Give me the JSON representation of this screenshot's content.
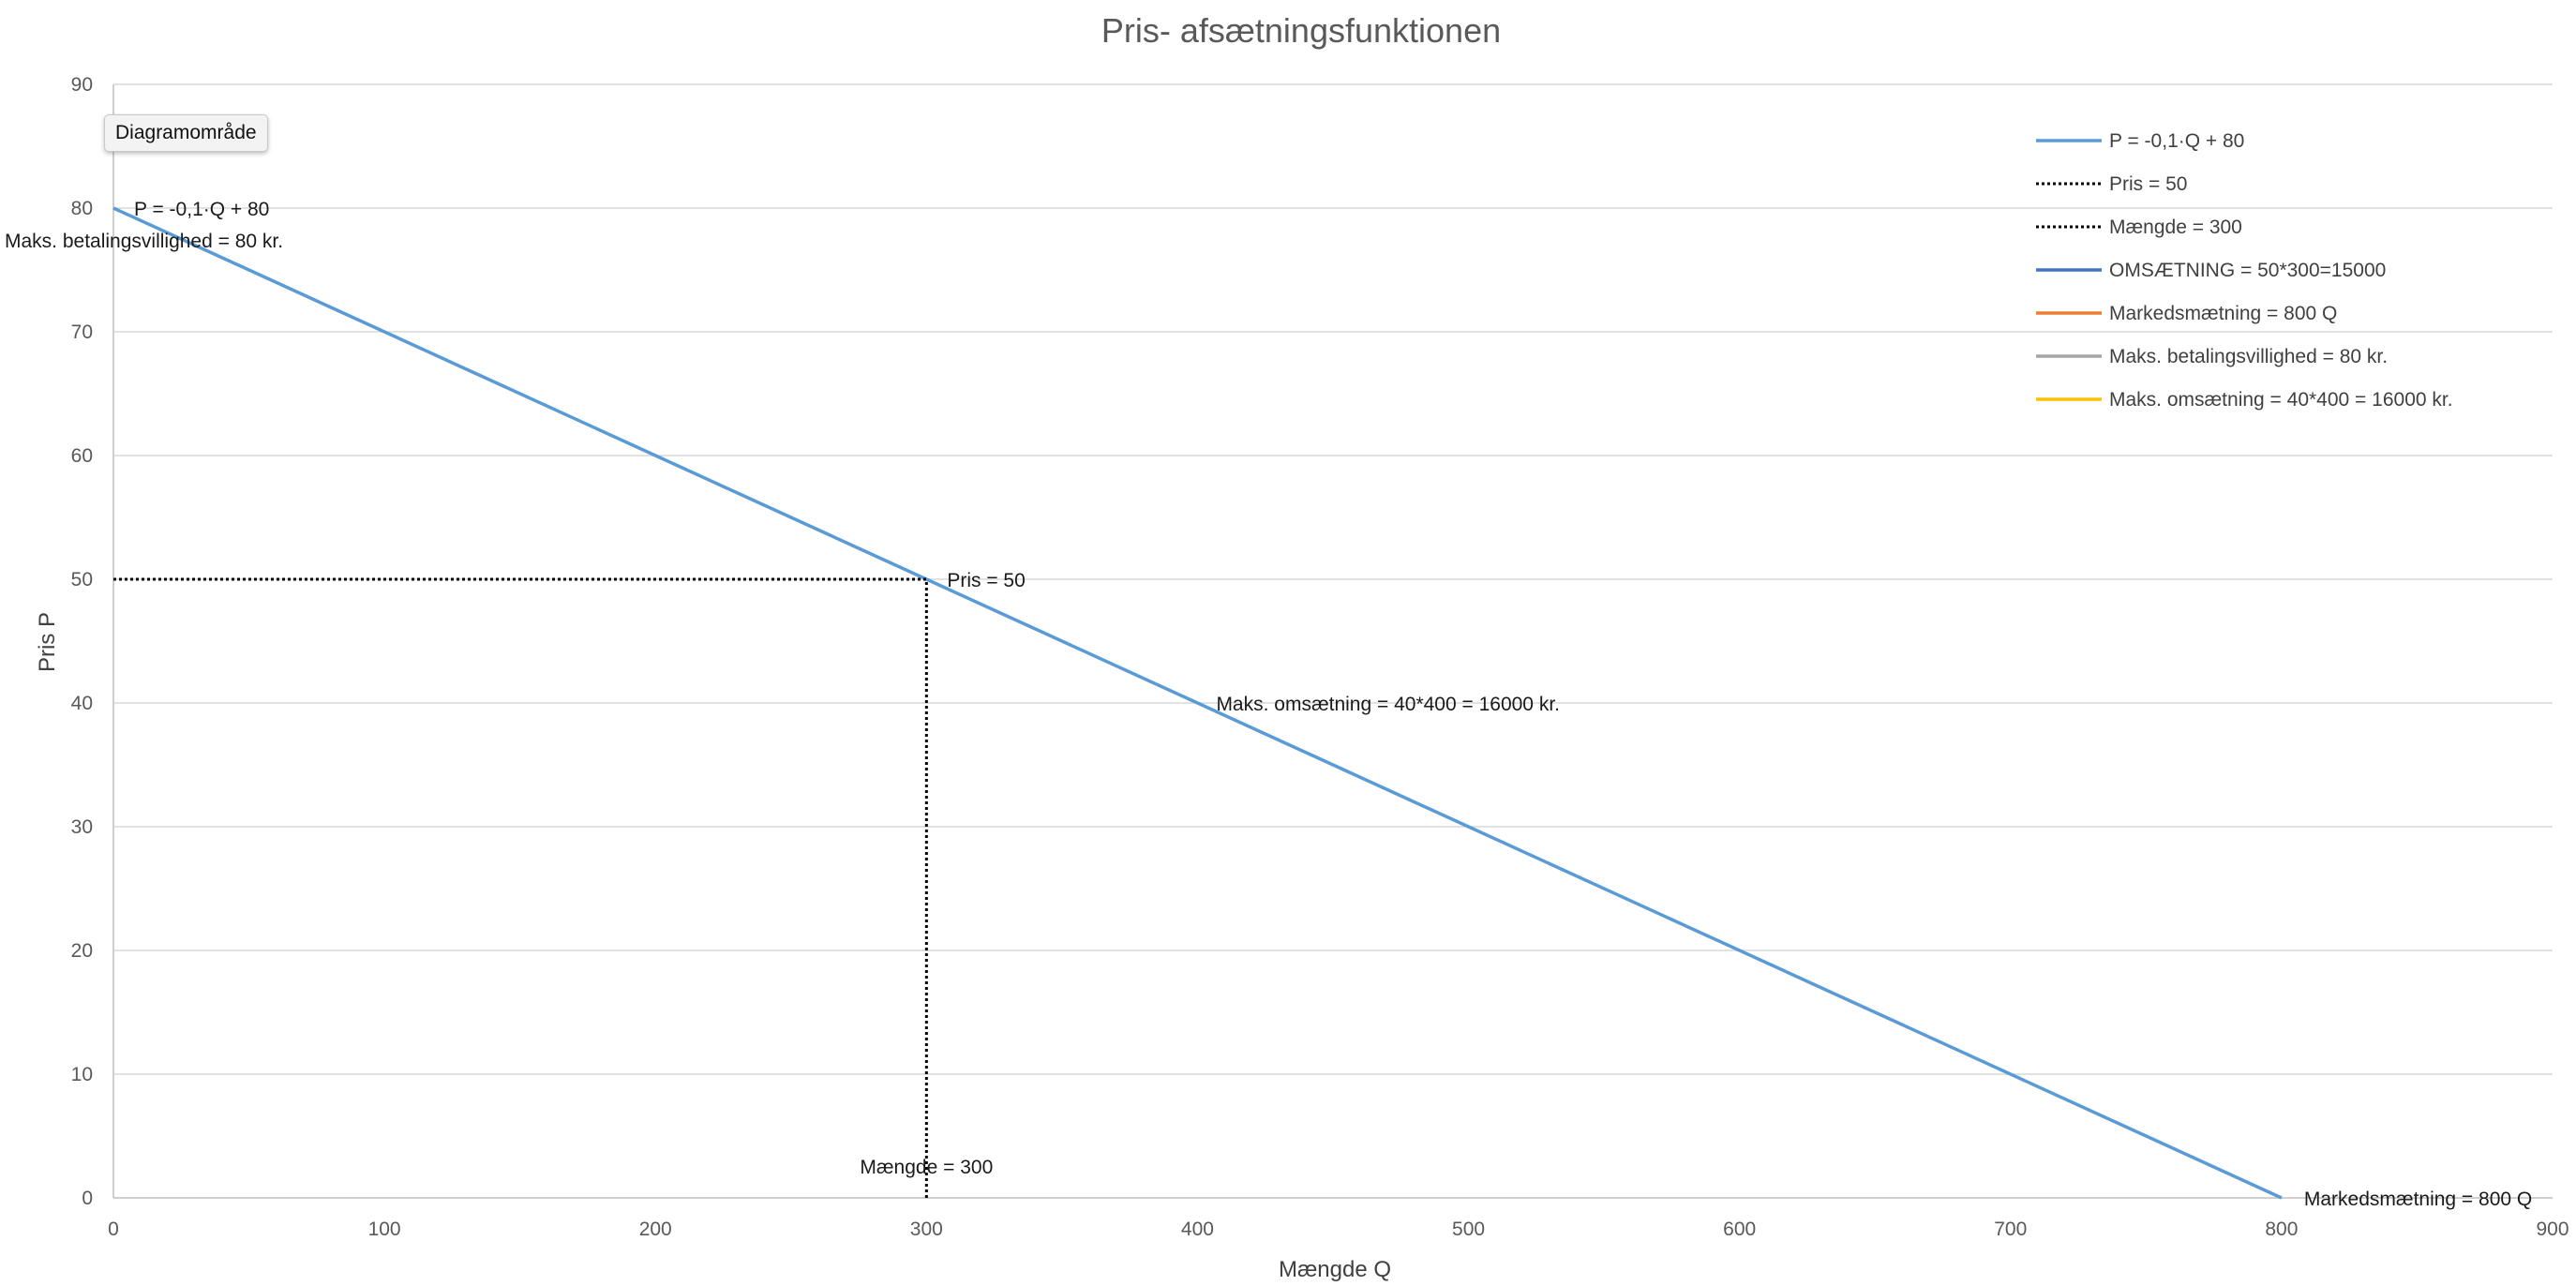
{
  "chart_data": {
    "type": "line",
    "title": "Pris- afsætningsfunktionen",
    "xlabel": "Mængde Q",
    "ylabel": "Pris P",
    "xlim": [
      0,
      900
    ],
    "ylim": [
      0,
      90
    ],
    "xticks": [
      0,
      100,
      200,
      300,
      400,
      500,
      600,
      700,
      800,
      900
    ],
    "yticks": [
      0,
      10,
      20,
      30,
      40,
      50,
      60,
      70,
      80,
      90
    ],
    "grid": "horizontal",
    "legend_position": "top-right",
    "series": [
      {
        "name": "P = -0,1·Q + 80",
        "color": "#5b9bd5",
        "style": "solid",
        "x": [
          0,
          800
        ],
        "y": [
          80,
          0
        ]
      },
      {
        "name": "Pris = 50",
        "color": "#000000",
        "style": "dotted",
        "x": [
          0,
          300
        ],
        "y": [
          50,
          50
        ]
      },
      {
        "name": "Mængde = 300",
        "color": "#000000",
        "style": "dotted",
        "x": [
          300,
          300
        ],
        "y": [
          0,
          50
        ]
      },
      {
        "name": "OMSÆTNING = 50*300=15000",
        "color": "#4472c4",
        "style": "solid",
        "x": [],
        "y": []
      },
      {
        "name": "Markedsmætning = 800 Q",
        "color": "#ed7d31",
        "style": "solid",
        "x": [],
        "y": []
      },
      {
        "name": "Maks. betalingsvillighed = 80 kr.",
        "color": "#a5a5a5",
        "style": "solid",
        "x": [],
        "y": []
      },
      {
        "name": "Maks. omsætning = 40*400 = 16000 kr.",
        "color": "#ffc000",
        "style": "solid",
        "x": [],
        "y": []
      }
    ],
    "annotations": [
      {
        "text": "P = -0,1·Q + 80",
        "x": 0,
        "y": 80
      },
      {
        "text": "Maks. betalingsvillighed = 80 kr.",
        "x": 0,
        "y": 80
      },
      {
        "text": "Pris = 50",
        "x": 300,
        "y": 50
      },
      {
        "text": "Maks. omsætning = 40*400 = 16000 kr.",
        "x": 400,
        "y": 40
      },
      {
        "text": "Mængde = 300",
        "x": 300,
        "y": 0
      },
      {
        "text": "Markedsmætning = 800 Q",
        "x": 800,
        "y": 0
      }
    ]
  },
  "tooltip": {
    "label": "Diagramområde"
  }
}
